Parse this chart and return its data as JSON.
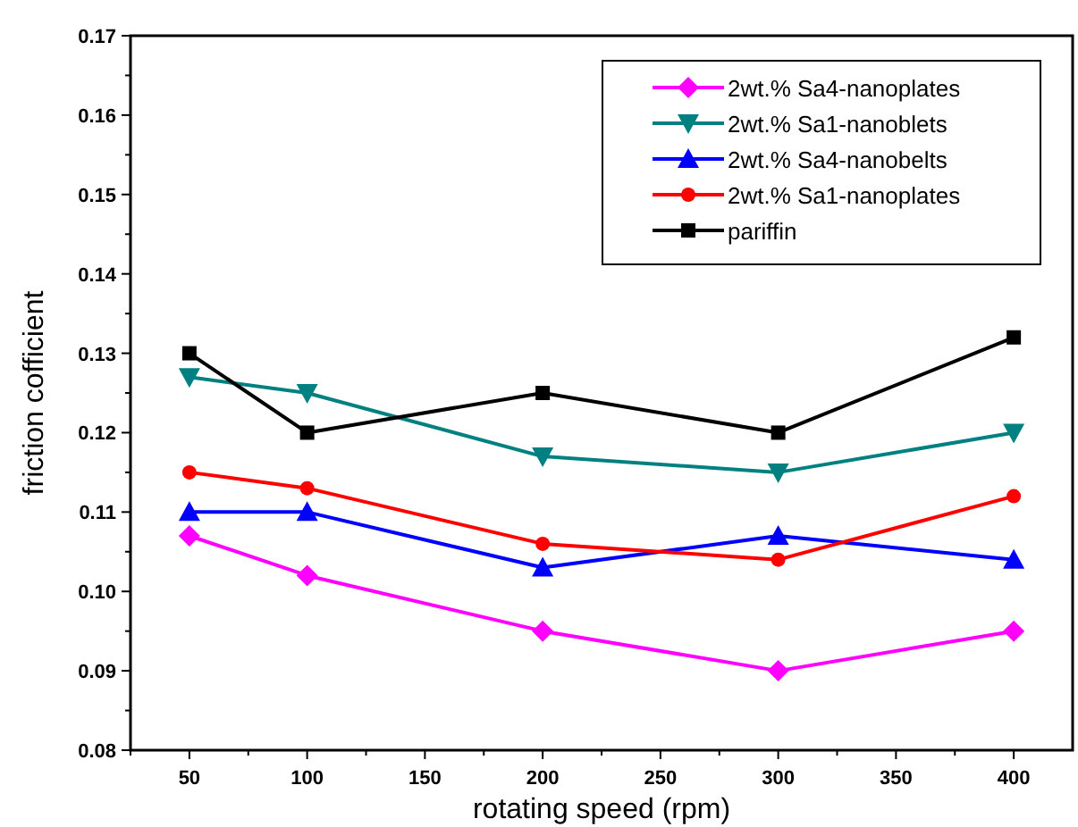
{
  "chart_data": {
    "type": "line",
    "xlabel": "rotating speed (rpm)",
    "ylabel": "friction cofficient",
    "x": [
      50,
      100,
      200,
      300,
      400
    ],
    "xlim": [
      25,
      425
    ],
    "xticks": [
      {
        "value": 25,
        "label": null
      },
      50,
      {
        "value": 75,
        "label": null
      },
      100,
      {
        "value": 125,
        "label": null
      },
      150,
      {
        "value": 175,
        "label": null
      },
      200,
      {
        "value": 225,
        "label": null
      },
      250,
      {
        "value": 275,
        "label": null
      },
      300,
      {
        "value": 325,
        "label": null
      },
      350,
      {
        "value": 375,
        "label": null
      },
      400
    ],
    "ylim": [
      0.08,
      0.17
    ],
    "yticks": [
      {
        "value": 0.08,
        "label": "0.08"
      },
      {
        "value": 0.085,
        "label": null
      },
      {
        "value": 0.09,
        "label": "0.09"
      },
      {
        "value": 0.095,
        "label": null
      },
      {
        "value": 0.1,
        "label": "0.10"
      },
      {
        "value": 0.105,
        "label": null
      },
      {
        "value": 0.11,
        "label": "0.11"
      },
      {
        "value": 0.115,
        "label": null
      },
      {
        "value": 0.12,
        "label": "0.12"
      },
      {
        "value": 0.125,
        "label": null
      },
      {
        "value": 0.13,
        "label": "0.13"
      },
      {
        "value": 0.135,
        "label": null
      },
      {
        "value": 0.14,
        "label": "0.14"
      },
      {
        "value": 0.145,
        "label": null
      },
      {
        "value": 0.15,
        "label": "0.15"
      },
      {
        "value": 0.155,
        "label": null
      },
      {
        "value": 0.16,
        "label": "0.16"
      },
      {
        "value": 0.165,
        "label": null
      },
      {
        "value": 0.17,
        "label": "0.17"
      }
    ],
    "grid": false,
    "legend": "top right",
    "line_style": "solid",
    "series": [
      {
        "name": "2wt.% Sa4-nanoplates",
        "color": "#ff00ff",
        "marker": "diamond",
        "values": [
          0.107,
          0.102,
          0.095,
          0.09,
          0.095
        ]
      },
      {
        "name": "2wt.% Sa1-nanoblets",
        "color": "#008080",
        "marker": "triangle-down",
        "values": [
          0.127,
          0.125,
          0.117,
          0.115,
          0.12
        ]
      },
      {
        "name": "2wt.% Sa4-nanobelts",
        "color": "#0000ff",
        "marker": "triangle",
        "values": [
          0.11,
          0.11,
          0.103,
          0.107,
          0.104
        ]
      },
      {
        "name": "2wt.% Sa1-nanoplates",
        "color": "#ff0000",
        "marker": "circle",
        "values": [
          0.115,
          0.113,
          0.106,
          0.104,
          0.112
        ]
      },
      {
        "name": "pariffin",
        "color": "#000000",
        "marker": "square",
        "values": [
          0.13,
          0.12,
          0.125,
          0.12,
          0.132
        ]
      }
    ]
  }
}
